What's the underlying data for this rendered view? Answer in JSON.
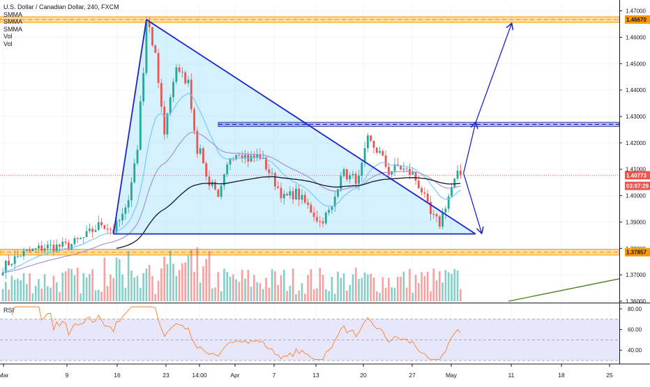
{
  "chart_data": {
    "type": "candlestick",
    "symbol_title": "U.S. Dollar / Canadian Dollar, 240, FXCM",
    "indicators": [
      "SMMA",
      "SMMA",
      "SMMA",
      "Vol",
      "Vol"
    ],
    "price_axis": {
      "ticks": [
        "1.47000",
        "1.46000",
        "1.45000",
        "1.44000",
        "1.43000",
        "1.42000",
        "1.41000",
        "1.40000",
        "1.39000",
        "1.38000",
        "1.37000",
        "1.36000"
      ],
      "ylim": [
        1.36,
        1.472
      ]
    },
    "price_badges": [
      {
        "label": "1.46670",
        "value": 1.4667,
        "color": "#ff9800",
        "text_color": "#131722"
      },
      {
        "label": "1.40773",
        "value": 1.40773,
        "color": "#ef5350",
        "text_color": "#ffffff"
      },
      {
        "label": "03:07:29",
        "value": 1.4037,
        "color": "#ef5350",
        "text_color": "#ffffff"
      },
      {
        "label": "1.37857",
        "value": 1.37857,
        "color": "#ff9800",
        "text_color": "#131722"
      }
    ],
    "x_axis": {
      "labels": [
        "Mar",
        "9",
        "16",
        "23",
        "14:00",
        "Apr",
        "7",
        "13",
        "20",
        "27",
        "May",
        "11",
        "18",
        "25"
      ]
    },
    "rsi": {
      "label": "RSI",
      "ticks": [
        "80.00",
        "60.00",
        "40.00"
      ],
      "band": [
        30,
        70
      ],
      "ylim": [
        28,
        84
      ]
    },
    "candles": {
      "start_x": 0.0,
      "step_x": 4.29,
      "count": 154,
      "anchors": [
        [
          0,
          1.3728
        ],
        [
          6,
          1.3778
        ],
        [
          14,
          1.3805
        ],
        [
          22,
          1.381
        ],
        [
          27,
          1.384
        ],
        [
          33,
          1.3895
        ],
        [
          37,
          1.3868
        ],
        [
          41,
          1.394
        ],
        [
          45,
          1.418
        ],
        [
          48,
          1.465
        ],
        [
          51,
          1.456
        ],
        [
          54,
          1.421
        ],
        [
          57,
          1.443
        ],
        [
          60,
          1.447
        ],
        [
          62,
          1.442
        ],
        [
          65,
          1.419
        ],
        [
          68,
          1.409
        ],
        [
          72,
          1.398
        ],
        [
          76,
          1.415
        ],
        [
          79,
          1.417
        ],
        [
          82,
          1.414
        ],
        [
          86,
          1.415
        ],
        [
          90,
          1.407
        ],
        [
          94,
          1.399
        ],
        [
          98,
          1.401
        ],
        [
          103,
          1.3945
        ],
        [
          106,
          1.39
        ],
        [
          110,
          1.395
        ],
        [
          113,
          1.409
        ],
        [
          116,
          1.407
        ],
        [
          119,
          1.406
        ],
        [
          122,
          1.421
        ],
        [
          126,
          1.416
        ],
        [
          129,
          1.409
        ],
        [
          132,
          1.411
        ],
        [
          137,
          1.408
        ],
        [
          140,
          1.402
        ],
        [
          143,
          1.3925
        ],
        [
          146,
          1.3895
        ],
        [
          148,
          1.3965
        ],
        [
          150,
          1.403
        ],
        [
          152,
          1.4077
        ]
      ]
    },
    "smma": [
      {
        "name": "SMMA",
        "color": "#6ec6ff",
        "period": 8
      },
      {
        "name": "SMMA",
        "color": "#9c8fd8",
        "period": 18
      },
      {
        "name": "SMMA",
        "color": "#131722",
        "period": 45
      }
    ],
    "colors": {
      "up": "#26a69a",
      "down": "#ef5350",
      "pattern_line": "#1a24c8",
      "pattern_fill": "#b3e5fc",
      "zone_orange": "#ff9800",
      "zone_blue": "#3949ab",
      "rsi_line": "#ff7f27",
      "rsi_band": "#e8e6fb",
      "trend_green": "#4b7a1f"
    },
    "annotations": {
      "triangle": [
        [
          48,
          1.4667
        ],
        [
          37,
          1.3855
        ],
        [
          158,
          1.3855
        ]
      ],
      "resistance_line": [
        [
          48,
          1.4667
        ],
        [
          158,
          1.3855
        ]
      ],
      "support_line": [
        [
          37,
          1.3855
        ],
        [
          158,
          1.3855
        ]
      ],
      "zone_orange_upper": 1.4667,
      "zone_orange_lower": 1.37857,
      "zone_blue": [
        1.4262,
        1.4278
      ],
      "arrow_up": [
        [
          154,
          1.4085
        ],
        [
          158,
          1.4275
        ],
        [
          170,
          1.465
        ]
      ],
      "arrow_down": [
        [
          154,
          1.4085
        ],
        [
          160,
          1.386
        ]
      ],
      "green_trend": [
        [
          169,
          1.36
        ],
        [
          212,
          1.3685
        ]
      ]
    }
  }
}
